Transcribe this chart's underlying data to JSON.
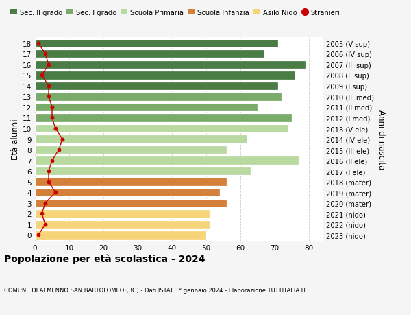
{
  "ages": [
    18,
    17,
    16,
    15,
    14,
    13,
    12,
    11,
    10,
    9,
    8,
    7,
    6,
    5,
    4,
    3,
    2,
    1,
    0
  ],
  "years": [
    "2005 (V sup)",
    "2006 (IV sup)",
    "2007 (III sup)",
    "2008 (II sup)",
    "2009 (I sup)",
    "2010 (III med)",
    "2011 (II med)",
    "2012 (I med)",
    "2013 (V ele)",
    "2014 (IV ele)",
    "2015 (III ele)",
    "2016 (II ele)",
    "2017 (I ele)",
    "2018 (mater)",
    "2019 (mater)",
    "2020 (mater)",
    "2021 (nido)",
    "2022 (nido)",
    "2023 (nido)"
  ],
  "values": [
    71,
    67,
    79,
    76,
    71,
    72,
    65,
    75,
    74,
    62,
    56,
    77,
    63,
    56,
    54,
    56,
    51,
    51,
    50
  ],
  "stranieri": [
    1,
    3,
    4,
    2,
    4,
    4,
    5,
    5,
    6,
    8,
    7,
    5,
    4,
    4,
    6,
    3,
    2,
    3,
    1
  ],
  "bar_colors": [
    "#4a7c45",
    "#4a7c45",
    "#4a7c45",
    "#4a7c45",
    "#4a7c45",
    "#7aab6b",
    "#7aab6b",
    "#7aab6b",
    "#b8d9a0",
    "#b8d9a0",
    "#b8d9a0",
    "#b8d9a0",
    "#b8d9a0",
    "#d4803a",
    "#d4803a",
    "#d4803a",
    "#f5d47a",
    "#f5d47a",
    "#f5d47a"
  ],
  "legend_labels": [
    "Sec. II grado",
    "Sec. I grado",
    "Scuola Primaria",
    "Scuola Infanzia",
    "Asilo Nido",
    "Stranieri"
  ],
  "legend_colors": [
    "#4a7c45",
    "#7aab6b",
    "#b8d9a0",
    "#d4803a",
    "#f5d47a",
    "#cc0000"
  ],
  "stranieri_color": "#cc0000",
  "title": "Popolazione per età scolastica - 2024",
  "subtitle": "COMUNE DI ALMENNO SAN BARTOLOMEO (BG) - Dati ISTAT 1° gennaio 2024 - Elaborazione TUTTITALIA.IT",
  "ylabel": "Età alunni",
  "right_ylabel": "Anni di nascita",
  "xlabel_vals": [
    0,
    10,
    20,
    30,
    40,
    50,
    60,
    70,
    80
  ],
  "xlim": [
    0,
    84
  ],
  "bg_color": "#f5f5f5",
  "plot_bg_color": "#ffffff",
  "grid_color": "#cccccc"
}
